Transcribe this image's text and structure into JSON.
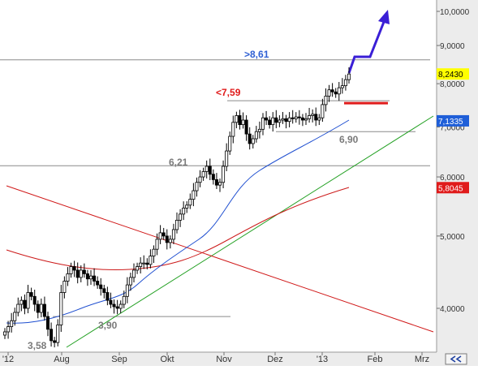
{
  "chart_data": {
    "type": "candlestick",
    "scale": "log",
    "ylim": [
      3.5,
      10.3
    ],
    "grid": false,
    "x_tick_labels": [
      "'12",
      "Aug",
      "Sep",
      "Okt",
      "Nov",
      "Dez",
      "'13",
      "Feb",
      "Mrz"
    ],
    "y_tick_labels": [
      "10,0000",
      "9,0000",
      "8,0000",
      "7,0000",
      "6,0000",
      "5,0000",
      "4,0000"
    ],
    "y_tick_values": [
      10,
      9,
      8,
      7,
      6,
      5,
      4
    ],
    "price_labels": [
      {
        "text": "8,2430",
        "value": 8.243,
        "color": "#ffff00"
      },
      {
        "text": "7,1335",
        "value": 7.1335,
        "color": "#1f5fd8"
      },
      {
        "text": "5,8045",
        "value": 5.8045,
        "color": "#e01b1b"
      }
    ],
    "annotations": [
      {
        "text": ">8,61",
        "value": 8.61,
        "color": "#2e5fd3"
      },
      {
        "text": "<7,59",
        "value": 7.59,
        "color": "#e01b1b"
      },
      {
        "text": "6,90",
        "value": 6.9,
        "color": "#7a7a7a"
      },
      {
        "text": "6,21",
        "value": 6.21,
        "color": "#7a7a7a"
      },
      {
        "text": "3,90",
        "value": 3.9,
        "color": "#7a7a7a"
      },
      {
        "text": "3,58",
        "value": 3.58,
        "color": "#7a7a7a"
      }
    ],
    "horizontal_levels": [
      8.61,
      7.59,
      6.9,
      6.21,
      3.9
    ],
    "series": [
      {
        "type": "candlestick",
        "close": [
          3.72,
          3.78,
          3.85,
          3.95,
          4.05,
          4.1,
          4.0,
          4.2,
          4.15,
          4.05,
          3.95,
          4.05,
          3.9,
          3.75,
          3.62,
          3.6,
          3.8,
          4.2,
          4.35,
          4.45,
          4.55,
          4.5,
          4.4,
          4.5,
          4.45,
          4.38,
          4.42,
          4.35,
          4.3,
          4.25,
          4.2,
          4.1,
          4.05,
          4.02,
          4.0,
          4.05,
          4.15,
          4.3,
          4.4,
          4.5,
          4.55,
          4.6,
          4.6,
          4.58,
          4.7,
          4.8,
          4.95,
          5.05,
          5.0,
          4.9,
          4.95,
          5.1,
          5.25,
          5.35,
          5.45,
          5.5,
          5.6,
          5.75,
          5.9,
          6.0,
          6.1,
          6.2,
          6.05,
          5.95,
          5.85,
          5.9,
          6.2,
          6.5,
          6.8,
          7.1,
          7.25,
          7.05,
          7.15,
          6.85,
          6.65,
          6.75,
          6.9,
          6.95,
          7.2,
          7.15,
          7.05,
          7.2,
          7.1,
          7.15,
          7.18,
          7.12,
          7.2,
          7.18,
          7.22,
          7.2,
          7.15,
          7.18,
          7.25,
          7.28,
          7.15,
          7.2,
          7.5,
          7.7,
          7.85,
          7.8,
          7.75,
          7.9,
          7.95,
          8.1,
          8.243
        ]
      },
      {
        "name": "",
        "type": "line",
        "color": "#1f4fd0",
        "style": "moving-average-short",
        "last_value": 7.1335
      },
      {
        "name": "",
        "type": "line",
        "color": "#cc1a1a",
        "style": "moving-average-long",
        "last_value": 5.8045
      },
      {
        "name": "",
        "type": "line",
        "color": "#22a022",
        "style": "trendline-up"
      },
      {
        "name": "",
        "type": "line",
        "color": "#d01818",
        "style": "trendline-down"
      },
      {
        "name": "",
        "type": "arrow",
        "color": "#3a1fd6",
        "style": "projection",
        "target_approx": 10.0
      }
    ]
  },
  "colors": {
    "axis_panel": "#e6e6e6",
    "candle": "#000000",
    "support_level": "#e01b1b"
  },
  "icons": {
    "scroll": "double-chevron-left-icon"
  }
}
